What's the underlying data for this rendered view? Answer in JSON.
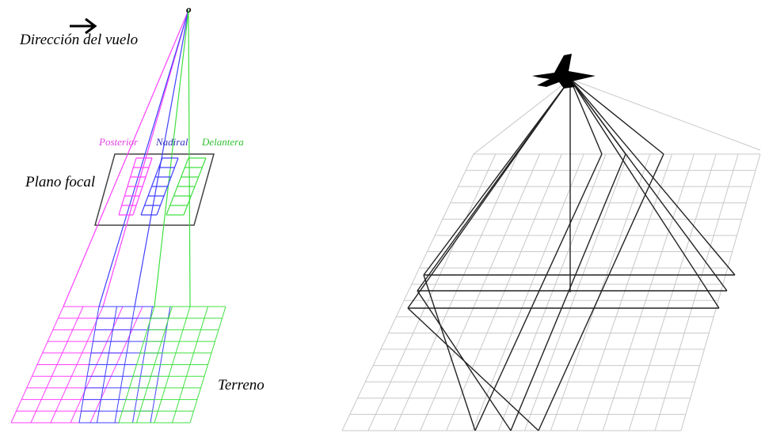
{
  "labels": {
    "direction": "Dirección del vuelo",
    "origin": "o",
    "posterior": "Posterior",
    "nadiral": "Nadiral",
    "delantera": "Delantera",
    "focal_plane": "Plano focal",
    "terrain": "Terreno"
  }
}
